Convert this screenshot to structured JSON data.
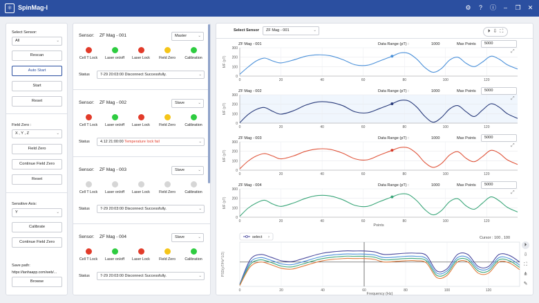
{
  "app": {
    "title": "SpinMag-I",
    "logo_icon": "atom-icon"
  },
  "titlebar_icons": [
    "gear-icon",
    "help-icon",
    "info-icon",
    "minimize-icon",
    "restore-icon",
    "close-icon"
  ],
  "left": {
    "select_sensor_label": "Select Sensor:",
    "select_sensor_value": "All",
    "rescan": "Rescan",
    "auto_start": "Auto Start",
    "start": "Start",
    "reset": "Reset",
    "field_zero_label": "Field Zero :",
    "field_zero_value": "X , Y , Z",
    "field_zero_btn": "Field Zero",
    "continue_field_zero": "Continue Field Zero",
    "reset2": "Reset",
    "sensitive_axis_label": "Sensitive Axis:",
    "sensitive_axis_value": "Y",
    "calibrate": "Calibrate",
    "continue_field_zero2": "Continue Field Zero",
    "save_path_label": "Save path:",
    "save_path_value": "https://tanhaapp.com/web/...",
    "browse": "Browse"
  },
  "sensor_label": "Sensor:",
  "status_label": "Status",
  "led_labels": [
    "Cell T Lock",
    "Laser on/off",
    "Laser Lock",
    "Field Zero",
    "Calibration"
  ],
  "colors": {
    "red": "#e23b2a",
    "green": "#2ecc40",
    "yellow": "#f5c518",
    "grey": "#d6d6d6",
    "accent": "#2b4fa0"
  },
  "sensors": [
    {
      "name": "ZF Mag - 001",
      "mode": "Master",
      "leds": [
        "red",
        "green",
        "red",
        "yellow",
        "green"
      ],
      "status": "7-29 20:03:00 Disconnect Successfully.",
      "status_alert": ""
    },
    {
      "name": "ZF Mag - 002",
      "mode": "Slave",
      "leds": [
        "red",
        "green",
        "red",
        "yellow",
        "green"
      ],
      "status": "4.12 21:00:00 ",
      "status_alert": "Temperature lock fail"
    },
    {
      "name": "ZF Mag - 003",
      "mode": "Slave",
      "leds": [
        "grey",
        "grey",
        "grey",
        "grey",
        "grey"
      ],
      "status": "7-29 20:03:00 Disconnect Successfully.",
      "status_alert": ""
    },
    {
      "name": "ZF Mag - 004",
      "mode": "Slave",
      "leds": [
        "red",
        "green",
        "red",
        "yellow",
        "green"
      ],
      "status": "7-29 20:03:00 Disconnect Successfully.",
      "status_alert": ""
    }
  ],
  "right": {
    "select_sensor_label": "Select Sensor",
    "select_sensor_value": "ZF Mag - 001",
    "top_controls": [
      "play-icon",
      "export-icon",
      "expand-icon"
    ],
    "data_range_label": "Data Range (pT) :",
    "max_points_label": "Max Points",
    "y_axis_label": "MF (pT)",
    "x_axis_label": "Points",
    "expand_icon": "expand-icon"
  },
  "charts": [
    {
      "title": "ZF Mag - 001",
      "data_range": "1000",
      "max_points": "5000",
      "color": "#4a90d9",
      "fill": "#ffffff",
      "cursor_color": "#4a90d9"
    },
    {
      "title": "ZF Mag - 002",
      "data_range": "1000",
      "max_points": "5000",
      "color": "#283a7a",
      "fill": "#f0f6fd",
      "cursor_color": "#283a7a"
    },
    {
      "title": "ZF Mag - 003",
      "data_range": "1000",
      "max_points": "5000",
      "color": "#e0553b",
      "fill": "#ffffff",
      "cursor_color": "#d63a2a"
    },
    {
      "title": "ZF Mag - 004",
      "data_range": "1000",
      "max_points": "5000",
      "color": "#3aa679",
      "fill": "#ffffff",
      "cursor_color": "#3aa679"
    }
  ],
  "psd": {
    "legend_label": "select",
    "cursor_text": "Cursor : 100 , 100",
    "ylabel": "PSD(pT/Hz^1/2)",
    "xlabel": "Frequency (Hz)",
    "side_icons": [
      "play-icon",
      "export-icon",
      "expand-icon",
      "tree-icon",
      "brush-icon"
    ]
  },
  "chart_data": [
    {
      "type": "line",
      "title": "ZF Mag - 001",
      "xlabel": "Points",
      "ylabel": "MF (pT)",
      "xlim": [
        0,
        135
      ],
      "ylim": [
        0,
        300
      ],
      "x_ticks": [
        0,
        20,
        40,
        60,
        80,
        100,
        120
      ],
      "y_ticks": [
        0,
        100,
        200,
        300
      ],
      "x": [
        0,
        4,
        8,
        12,
        16,
        20,
        26,
        32,
        38,
        44,
        50,
        56,
        62,
        68,
        74,
        78,
        82,
        86,
        90,
        94,
        98,
        102,
        106,
        110,
        114,
        118,
        122,
        126,
        130,
        135
      ],
      "series": [
        {
          "name": "ZF Mag - 001",
          "values": [
            20,
            95,
            160,
            190,
            160,
            140,
            170,
            210,
            225,
            215,
            175,
            120,
            115,
            160,
            210,
            245,
            240,
            180,
            90,
            40,
            80,
            170,
            200,
            135,
            100,
            150,
            210,
            180,
            120,
            75
          ]
        }
      ]
    },
    {
      "type": "line",
      "title": "ZF Mag - 002",
      "xlabel": "Points",
      "ylabel": "MF (pT)",
      "xlim": [
        0,
        135
      ],
      "ylim": [
        0,
        300
      ],
      "x_ticks": [
        0,
        20,
        40,
        60,
        80,
        100,
        120
      ],
      "y_ticks": [
        0,
        100,
        200,
        300
      ],
      "x": [
        0,
        4,
        8,
        12,
        16,
        20,
        26,
        32,
        38,
        44,
        50,
        56,
        62,
        68,
        74,
        78,
        82,
        86,
        90,
        94,
        98,
        102,
        106,
        110,
        114,
        118,
        122,
        126,
        130,
        135
      ],
      "series": [
        {
          "name": "ZF Mag - 002",
          "values": [
            5,
            90,
            145,
            165,
            125,
            95,
            130,
            190,
            225,
            220,
            185,
            120,
            110,
            155,
            205,
            240,
            235,
            170,
            70,
            10,
            60,
            150,
            185,
            120,
            70,
            140,
            205,
            170,
            100,
            50
          ]
        }
      ]
    },
    {
      "type": "line",
      "title": "ZF Mag - 003",
      "xlabel": "Points",
      "ylabel": "MF (pT)",
      "xlim": [
        0,
        135
      ],
      "ylim": [
        0,
        300
      ],
      "x_ticks": [
        0,
        20,
        40,
        60,
        80,
        100,
        120
      ],
      "y_ticks": [
        0,
        100,
        200,
        300
      ],
      "x": [
        0,
        4,
        8,
        12,
        16,
        20,
        26,
        32,
        38,
        44,
        50,
        56,
        62,
        68,
        74,
        78,
        82,
        86,
        90,
        94,
        98,
        102,
        106,
        110,
        114,
        118,
        122,
        126,
        130,
        135
      ],
      "series": [
        {
          "name": "ZF Mag - 003",
          "values": [
            15,
            95,
            150,
            175,
            150,
            120,
            150,
            200,
            225,
            220,
            180,
            120,
            110,
            160,
            210,
            240,
            235,
            175,
            80,
            30,
            70,
            160,
            195,
            125,
            90,
            145,
            210,
            180,
            110,
            60
          ]
        }
      ]
    },
    {
      "type": "line",
      "title": "ZF Mag - 004",
      "xlabel": "Points",
      "ylabel": "MF (pT)",
      "xlim": [
        0,
        135
      ],
      "ylim": [
        0,
        300
      ],
      "x_ticks": [
        0,
        20,
        40,
        60,
        80,
        100,
        120
      ],
      "y_ticks": [
        0,
        100,
        200,
        300
      ],
      "x": [
        0,
        4,
        8,
        12,
        16,
        20,
        26,
        32,
        38,
        44,
        50,
        56,
        62,
        68,
        74,
        78,
        82,
        86,
        90,
        94,
        98,
        102,
        106,
        110,
        114,
        118,
        122,
        126,
        130,
        135
      ],
      "series": [
        {
          "name": "ZF Mag - 004",
          "values": [
            10,
            95,
            150,
            180,
            140,
            115,
            150,
            200,
            230,
            225,
            185,
            125,
            115,
            165,
            215,
            245,
            240,
            175,
            80,
            25,
            70,
            165,
            195,
            120,
            85,
            150,
            215,
            175,
            105,
            55
          ]
        }
      ]
    },
    {
      "type": "line",
      "title": "PSD",
      "xlabel": "Frequency (Hz)",
      "ylabel": "PSD(pT/Hz^1/2)",
      "xlim": [
        0,
        135
      ],
      "ylim": [
        0,
        100
      ],
      "x_ticks": [
        0,
        20,
        40,
        60,
        80,
        100,
        120
      ],
      "x": [
        0,
        5,
        10,
        15,
        20,
        25,
        30,
        40,
        50,
        55,
        60,
        65,
        70,
        80,
        85,
        90,
        95,
        100,
        105,
        110,
        115,
        120,
        125,
        130,
        135
      ],
      "series": [
        {
          "name": "ZF Mag - 001",
          "color": "#4a4a9e",
          "values": [
            5,
            60,
            72,
            66,
            58,
            56,
            62,
            75,
            80,
            80,
            80,
            78,
            72,
            75,
            75,
            70,
            35,
            40,
            72,
            72,
            45,
            45,
            72,
            70,
            55
          ]
        },
        {
          "name": "ZF Mag - 002",
          "color": "#4a90d9",
          "values": [
            4,
            54,
            65,
            59,
            51,
            49,
            55,
            68,
            73,
            73,
            73,
            71,
            65,
            68,
            68,
            63,
            30,
            35,
            65,
            65,
            40,
            40,
            65,
            63,
            48
          ]
        },
        {
          "name": "ZF Mag - 003",
          "color": "#3aa679",
          "values": [
            3,
            49,
            60,
            54,
            46,
            44,
            50,
            63,
            68,
            68,
            68,
            66,
            60,
            63,
            63,
            58,
            25,
            30,
            60,
            60,
            35,
            35,
            60,
            58,
            43
          ]
        },
        {
          "name": "ZF Mag - 004",
          "color": "#e07a3b",
          "values": [
            2,
            44,
            55,
            49,
            41,
            39,
            45,
            58,
            63,
            63,
            63,
            61,
            55,
            58,
            58,
            53,
            20,
            25,
            55,
            55,
            30,
            30,
            55,
            53,
            38
          ]
        }
      ]
    }
  ]
}
